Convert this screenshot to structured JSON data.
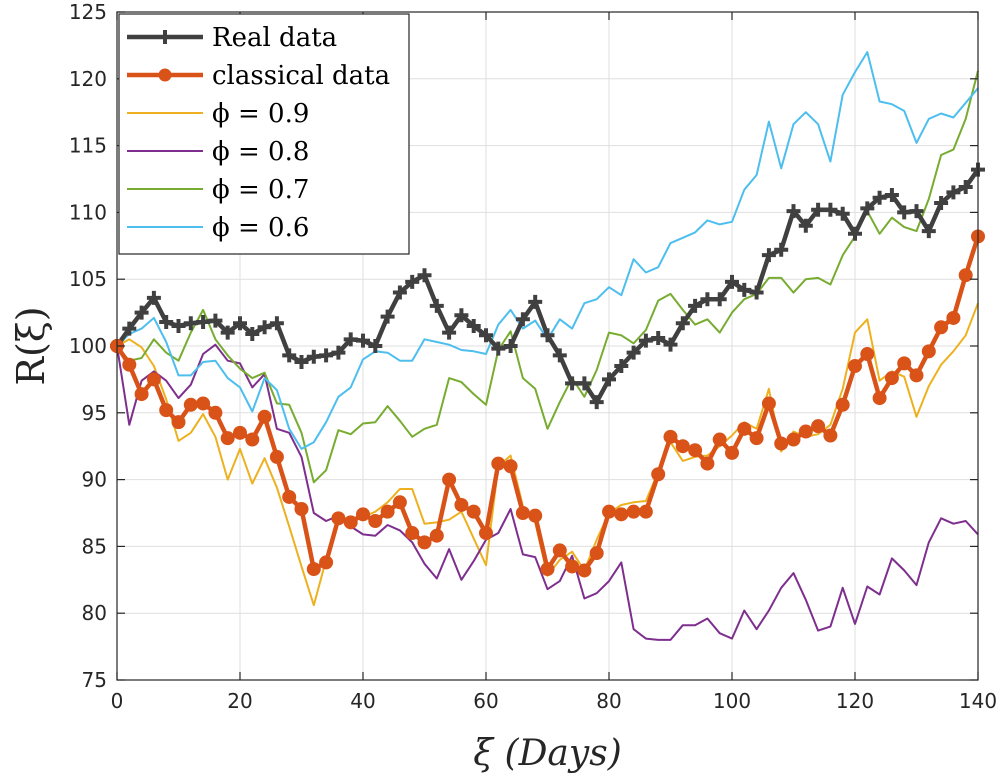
{
  "chart_data": {
    "type": "line",
    "title": "",
    "xlabel": "ξ (Days)",
    "ylabel": "R(ξ)",
    "xlim": [
      0,
      140
    ],
    "ylim": [
      75,
      125
    ],
    "xticks": [
      0,
      20,
      40,
      60,
      80,
      100,
      120,
      140
    ],
    "yticks": [
      75,
      80,
      85,
      90,
      95,
      100,
      105,
      110,
      115,
      120,
      125
    ],
    "xtick_labels": [
      "0",
      "20",
      "40",
      "60",
      "80",
      "100",
      "120",
      "140"
    ],
    "ytick_labels": [
      "75",
      "80",
      "85",
      "90",
      "95",
      "100",
      "105",
      "110",
      "115",
      "120",
      "125"
    ],
    "grid": true,
    "legend_position": "top-left",
    "x": [
      0,
      2,
      4,
      6,
      8,
      10,
      12,
      14,
      16,
      18,
      20,
      22,
      24,
      26,
      28,
      30,
      32,
      34,
      36,
      38,
      40,
      42,
      44,
      46,
      48,
      50,
      52,
      54,
      56,
      58,
      60,
      62,
      64,
      66,
      68,
      70,
      72,
      74,
      76,
      78,
      80,
      82,
      84,
      86,
      88,
      90,
      92,
      94,
      96,
      98,
      100,
      102,
      104,
      106,
      108,
      110,
      112,
      114,
      116,
      118,
      120,
      122,
      124,
      126,
      128,
      130,
      132,
      134,
      136,
      138,
      140
    ],
    "series": [
      {
        "name": "Real data",
        "legend_label": "Real data",
        "color": "#404040",
        "marker": "plus",
        "values": [
          100,
          101.3,
          102.5,
          103.6,
          101.8,
          101.5,
          101.7,
          101.8,
          101.9,
          101.0,
          101.7,
          100.9,
          101.4,
          101.7,
          99.3,
          98.8,
          99.2,
          99.3,
          99.5,
          100.5,
          100.4,
          100.0,
          102.2,
          104.0,
          104.8,
          105.3,
          103.0,
          101.0,
          102.3,
          101.5,
          100.8,
          99.8,
          100.0,
          102.0,
          103.3,
          100.8,
          99.3,
          97.2,
          97.2,
          95.8,
          97.5,
          98.5,
          99.5,
          100.4,
          100.6,
          100.1,
          101.7,
          103.0,
          103.5,
          103.5,
          104.8,
          104.2,
          104.0,
          106.8,
          107.2,
          110.1,
          109.0,
          110.2,
          110.2,
          109.9,
          108.4,
          110.3,
          111.1,
          111.3,
          110.0,
          110.1,
          108.6,
          110.7,
          111.5,
          111.9,
          113.2
        ]
      },
      {
        "name": "classical data",
        "legend_label": "classical data",
        "color": "#d95319",
        "marker": "circle",
        "values": [
          100,
          98.6,
          96.4,
          97.5,
          95.2,
          94.3,
          95.6,
          95.7,
          95.0,
          93.1,
          93.5,
          93.0,
          94.7,
          91.7,
          88.7,
          87.8,
          83.3,
          83.8,
          87.1,
          86.8,
          87.4,
          86.9,
          87.6,
          88.3,
          86.0,
          85.3,
          85.8,
          90.0,
          88.1,
          87.6,
          86.0,
          91.2,
          91.0,
          87.5,
          87.3,
          83.3,
          84.7,
          83.5,
          83.2,
          84.5,
          87.6,
          87.4,
          87.6,
          87.6,
          90.4,
          93.2,
          92.5,
          92.2,
          91.2,
          93.0,
          92.0,
          93.8,
          93.1,
          95.7,
          92.7,
          93.0,
          93.6,
          94.0,
          93.3,
          95.6,
          98.5,
          99.4,
          96.1,
          97.6,
          98.7,
          97.8,
          99.6,
          101.4,
          102.1,
          105.3,
          108.2
        ]
      },
      {
        "name": "phi = 0.9",
        "legend_label": "ϕ = 0.9",
        "color": "#edb120",
        "marker": "none",
        "values": [
          100,
          100.5,
          99.9,
          98.5,
          96.0,
          92.9,
          93.5,
          94.9,
          93.2,
          90.0,
          92.3,
          89.7,
          91.6,
          89.4,
          86.5,
          83.5,
          80.6,
          84.0,
          86.8,
          86.8,
          87.2,
          87.6,
          88.3,
          89.3,
          89.3,
          86.7,
          86.8,
          87.0,
          87.6,
          85.6,
          83.6,
          91.0,
          91.8,
          88.0,
          86.8,
          82.8,
          84.0,
          84.6,
          83.2,
          85.5,
          87.5,
          88.1,
          88.3,
          88.4,
          90.6,
          92.8,
          91.4,
          91.7,
          91.8,
          92.5,
          93.3,
          94.3,
          93.8,
          96.8,
          92.1,
          93.6,
          93.2,
          93.4,
          94.1,
          96.8,
          101.0,
          102.0,
          97.4,
          98.1,
          97.7,
          94.7,
          97.0,
          98.6,
          99.6,
          100.8,
          103.2
        ]
      },
      {
        "name": "phi = 0.8",
        "legend_label": "ϕ = 0.8",
        "color": "#7e2f8e",
        "marker": "none",
        "values": [
          100,
          94.1,
          97.4,
          98.1,
          97.4,
          96.1,
          97.1,
          99.4,
          100.1,
          98.9,
          98.7,
          96.9,
          97.9,
          93.8,
          93.5,
          91.7,
          87.5,
          86.9,
          87.3,
          86.5,
          85.9,
          85.8,
          86.6,
          86.2,
          85.3,
          83.7,
          82.6,
          84.8,
          82.5,
          83.9,
          85.5,
          86.0,
          87.8,
          84.4,
          84.2,
          81.8,
          82.4,
          84.3,
          81.1,
          81.5,
          82.4,
          83.8,
          78.8,
          78.1,
          78.0,
          78.0,
          79.1,
          79.1,
          79.6,
          78.5,
          78.1,
          80.2,
          78.8,
          80.2,
          81.9,
          83.0,
          81.0,
          78.7,
          79.0,
          81.9,
          79.2,
          82.0,
          81.4,
          84.1,
          83.2,
          82.1,
          85.3,
          87.1,
          86.7,
          86.9,
          85.9
        ]
      },
      {
        "name": "phi = 0.7",
        "legend_label": "ϕ = 0.7",
        "color": "#77ac30",
        "marker": "none",
        "values": [
          100,
          98.9,
          99.1,
          100.5,
          99.5,
          98.9,
          101.0,
          102.7,
          100.5,
          99.3,
          98.3,
          97.6,
          98.0,
          95.7,
          95.6,
          93.5,
          89.8,
          90.7,
          93.7,
          93.4,
          94.2,
          94.3,
          95.5,
          94.4,
          93.2,
          93.8,
          94.1,
          97.6,
          97.3,
          96.4,
          95.6,
          99.7,
          101.1,
          97.6,
          96.8,
          93.8,
          95.8,
          97.6,
          96.2,
          98.2,
          101.0,
          100.8,
          100.2,
          101.2,
          103.4,
          103.9,
          102.7,
          101.6,
          102.0,
          101.0,
          102.5,
          103.5,
          103.9,
          105.1,
          105.1,
          104.0,
          105.0,
          105.1,
          104.6,
          106.8,
          108.2,
          110.1,
          108.4,
          109.6,
          108.9,
          108.6,
          111.0,
          114.3,
          114.7,
          117.0,
          120.6
        ]
      },
      {
        "name": "phi = 0.6",
        "legend_label": "ϕ = 0.6",
        "color": "#4dbeee",
        "marker": "none",
        "values": [
          100,
          100.9,
          101.3,
          102.1,
          100.3,
          97.8,
          97.8,
          98.8,
          98.9,
          97.6,
          96.9,
          95.1,
          97.6,
          96.7,
          93.8,
          92.3,
          92.8,
          94.3,
          96.2,
          96.9,
          99.0,
          99.6,
          99.5,
          98.9,
          98.9,
          100.5,
          100.3,
          100.1,
          99.7,
          99.6,
          99.4,
          101.6,
          102.7,
          101.3,
          101.9,
          100.5,
          102.0,
          101.3,
          103.2,
          103.5,
          104.4,
          103.8,
          106.5,
          105.5,
          105.9,
          107.7,
          108.1,
          108.5,
          109.4,
          109.1,
          109.3,
          111.7,
          112.8,
          116.8,
          113.3,
          116.6,
          117.5,
          116.6,
          113.8,
          118.8,
          120.5,
          122.0,
          118.3,
          118.1,
          117.6,
          115.2,
          117.0,
          117.4,
          117.1,
          118.2,
          119.3
        ]
      }
    ]
  }
}
